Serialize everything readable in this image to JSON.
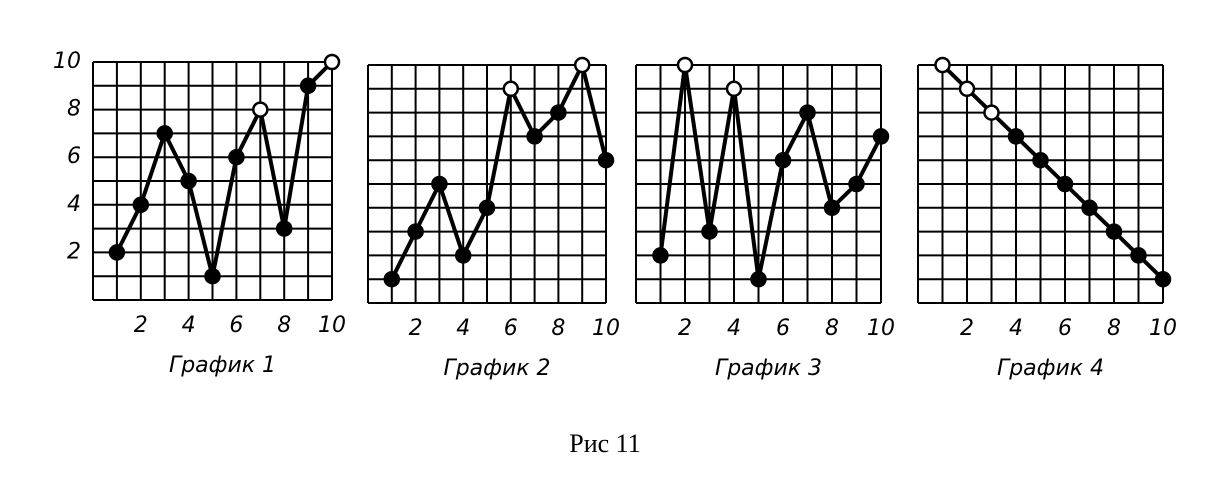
{
  "chart_data": [
    {
      "type": "line",
      "title": "График 1",
      "x": [
        1,
        2,
        3,
        4,
        5,
        6,
        7,
        8,
        9,
        10
      ],
      "series": [
        {
          "color": "#000000",
          "values": [
            2,
            4,
            7,
            5,
            1,
            6,
            8,
            3,
            9,
            10
          ]
        }
      ],
      "open_points": [
        7,
        10
      ],
      "xlim": [
        0,
        10
      ],
      "ylim": [
        0,
        10
      ],
      "xticks": [
        2,
        4,
        6,
        8,
        10
      ],
      "yticks": [
        2,
        4,
        6,
        8,
        10
      ],
      "grid": true,
      "grid_step": 1
    },
    {
      "type": "line",
      "title": "График 2",
      "x": [
        1,
        2,
        3,
        4,
        5,
        6,
        7,
        8,
        9,
        10
      ],
      "series": [
        {
          "color": "#000000",
          "values": [
            1,
            3,
            5,
            2,
            4,
            9,
            7,
            8,
            10,
            6
          ]
        }
      ],
      "open_points": [
        6,
        9
      ],
      "xlim": [
        0,
        10
      ],
      "ylim": [
        0,
        10
      ],
      "xticks": [
        2,
        4,
        6,
        8,
        10
      ],
      "grid": true,
      "grid_step": 1
    },
    {
      "type": "line",
      "title": "График 3",
      "x": [
        1,
        2,
        3,
        4,
        5,
        6,
        7,
        8,
        9,
        10
      ],
      "series": [
        {
          "color": "#000000",
          "values": [
            2,
            10,
            3,
            9,
            1,
            6,
            8,
            4,
            5,
            7
          ]
        }
      ],
      "open_points": [
        2,
        4
      ],
      "xlim": [
        0,
        10
      ],
      "ylim": [
        0,
        10
      ],
      "xticks": [
        2,
        4,
        6,
        8,
        10
      ],
      "grid": true,
      "grid_step": 1
    },
    {
      "type": "line",
      "title": "График 4",
      "x": [
        1,
        2,
        3,
        4,
        5,
        6,
        7,
        8,
        9,
        10
      ],
      "series": [
        {
          "color": "#000000",
          "values": [
            10,
            9,
            8,
            7,
            6,
            5,
            4,
            3,
            2,
            1
          ]
        }
      ],
      "open_points": [
        1,
        2,
        3
      ],
      "xlim": [
        0,
        10
      ],
      "ylim": [
        0,
        10
      ],
      "xticks": [
        2,
        4,
        6,
        8,
        10
      ],
      "grid": true,
      "grid_step": 1
    }
  ],
  "caption": "Рис 11"
}
